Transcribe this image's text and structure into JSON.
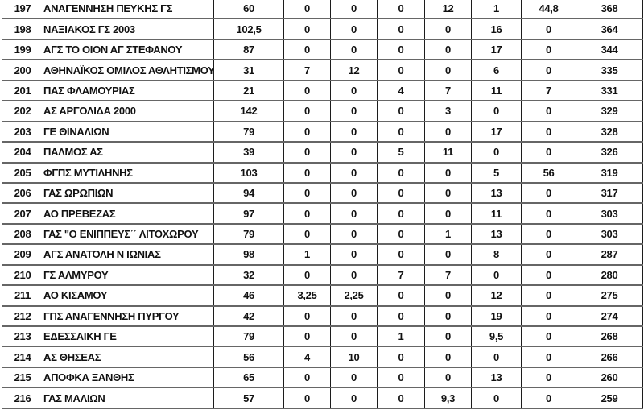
{
  "page": {
    "background_color": "#ffffff",
    "text_color": "#111111",
    "horizontal_rule_color": "#666666",
    "vertical_rule_color": "#1c1c1c"
  },
  "table": {
    "rows": [
      {
        "rank": "197",
        "name": "ΑΝΑΓΕΝΝΗΣΗ ΠΕΥΚΗΣ ΓΣ",
        "values": [
          "60",
          "0",
          "0",
          "0",
          "12",
          "1",
          "44,8",
          "368"
        ]
      },
      {
        "rank": "198",
        "name": "ΝΑΞΙΑΚΟΣ ΓΣ 2003",
        "values": [
          "102,5",
          "0",
          "0",
          "0",
          "0",
          "16",
          "0",
          "364"
        ]
      },
      {
        "rank": "199",
        "name": "ΑΓΣ ΤΟ ΟΙΟΝ ΑΓ ΣΤΕΦΑΝΟΥ",
        "values": [
          "87",
          "0",
          "0",
          "0",
          "0",
          "17",
          "0",
          "344"
        ]
      },
      {
        "rank": "200",
        "name": "ΑΘΗΝΑΪΚΟΣ ΟΜΙΛΟΣ ΑΘΛΗΤΙΣΜΟΥ",
        "values": [
          "31",
          "7",
          "12",
          "0",
          "0",
          "6",
          "0",
          "335"
        ]
      },
      {
        "rank": "201",
        "name": "ΠΑΣ ΦΛΑΜΟΥΡΙΑΣ",
        "values": [
          "21",
          "0",
          "0",
          "4",
          "7",
          "11",
          "7",
          "331"
        ]
      },
      {
        "rank": "202",
        "name": "ΑΣ ΑΡΓΟΛΙΔΑ 2000",
        "values": [
          "142",
          "0",
          "0",
          "0",
          "3",
          "0",
          "0",
          "329"
        ]
      },
      {
        "rank": "203",
        "name": "ΓΕ ΘΙΝΑΛΙΩΝ",
        "values": [
          "79",
          "0",
          "0",
          "0",
          "0",
          "17",
          "0",
          "328"
        ]
      },
      {
        "rank": "204",
        "name": "ΠΑΛΜΟΣ ΑΣ",
        "values": [
          "39",
          "0",
          "0",
          "5",
          "11",
          "0",
          "0",
          "326"
        ]
      },
      {
        "rank": "205",
        "name": "ΦΓΠΣ ΜΥΤΙΛΗΝΗΣ",
        "values": [
          "103",
          "0",
          "0",
          "0",
          "0",
          "5",
          "56",
          "319"
        ]
      },
      {
        "rank": "206",
        "name": "ΓΑΣ ΩΡΩΠΙΩΝ",
        "values": [
          "94",
          "0",
          "0",
          "0",
          "0",
          "13",
          "0",
          "317"
        ]
      },
      {
        "rank": "207",
        "name": "ΑΟ ΠΡΕΒΕΖΑΣ",
        "values": [
          "97",
          "0",
          "0",
          "0",
          "0",
          "11",
          "0",
          "303"
        ]
      },
      {
        "rank": "208",
        "name": "ΓΑΣ ''Ο ΕΝΙΠΠΕΥΣ΄΄ ΛΙΤΟΧΩΡΟΥ",
        "values": [
          "79",
          "0",
          "0",
          "0",
          "1",
          "13",
          "0",
          "303"
        ]
      },
      {
        "rank": "209",
        "name": "ΑΓΣ ΑΝΑΤΟΛΗ Ν ΙΩΝΙΑΣ",
        "values": [
          "98",
          "1",
          "0",
          "0",
          "0",
          "8",
          "0",
          "287"
        ]
      },
      {
        "rank": "210",
        "name": "ΓΣ ΑΛΜΥΡΟΥ",
        "values": [
          "32",
          "0",
          "0",
          "7",
          "7",
          "0",
          "0",
          "280"
        ]
      },
      {
        "rank": "211",
        "name": "ΑΟ ΚΙΣΑΜΟΥ",
        "values": [
          "46",
          "3,25",
          "2,25",
          "0",
          "0",
          "12",
          "0",
          "275"
        ]
      },
      {
        "rank": "212",
        "name": "ΓΠΣ ΑΝΑΓΕΝΝΗΣΗ ΠΥΡΓΟΥ",
        "values": [
          "42",
          "0",
          "0",
          "0",
          "0",
          "19",
          "0",
          "274"
        ]
      },
      {
        "rank": "213",
        "name": "ΕΔΕΣΣΑΙΚΗ ΓΕ",
        "values": [
          "79",
          "0",
          "0",
          "1",
          "0",
          "9,5",
          "0",
          "268"
        ]
      },
      {
        "rank": "214",
        "name": "ΑΣ ΘΗΣΕΑΣ",
        "values": [
          "56",
          "4",
          "10",
          "0",
          "0",
          "0",
          "0",
          "266"
        ]
      },
      {
        "rank": "215",
        "name": "ΑΠΟΦΚΑ ΞΑΝΘΗΣ",
        "values": [
          "65",
          "0",
          "0",
          "0",
          "0",
          "13",
          "0",
          "260"
        ]
      },
      {
        "rank": "216",
        "name": "ΓΑΣ ΜΑΛΙΩΝ",
        "values": [
          "57",
          "0",
          "0",
          "0",
          "9,3",
          "0",
          "0",
          "259"
        ]
      }
    ]
  }
}
